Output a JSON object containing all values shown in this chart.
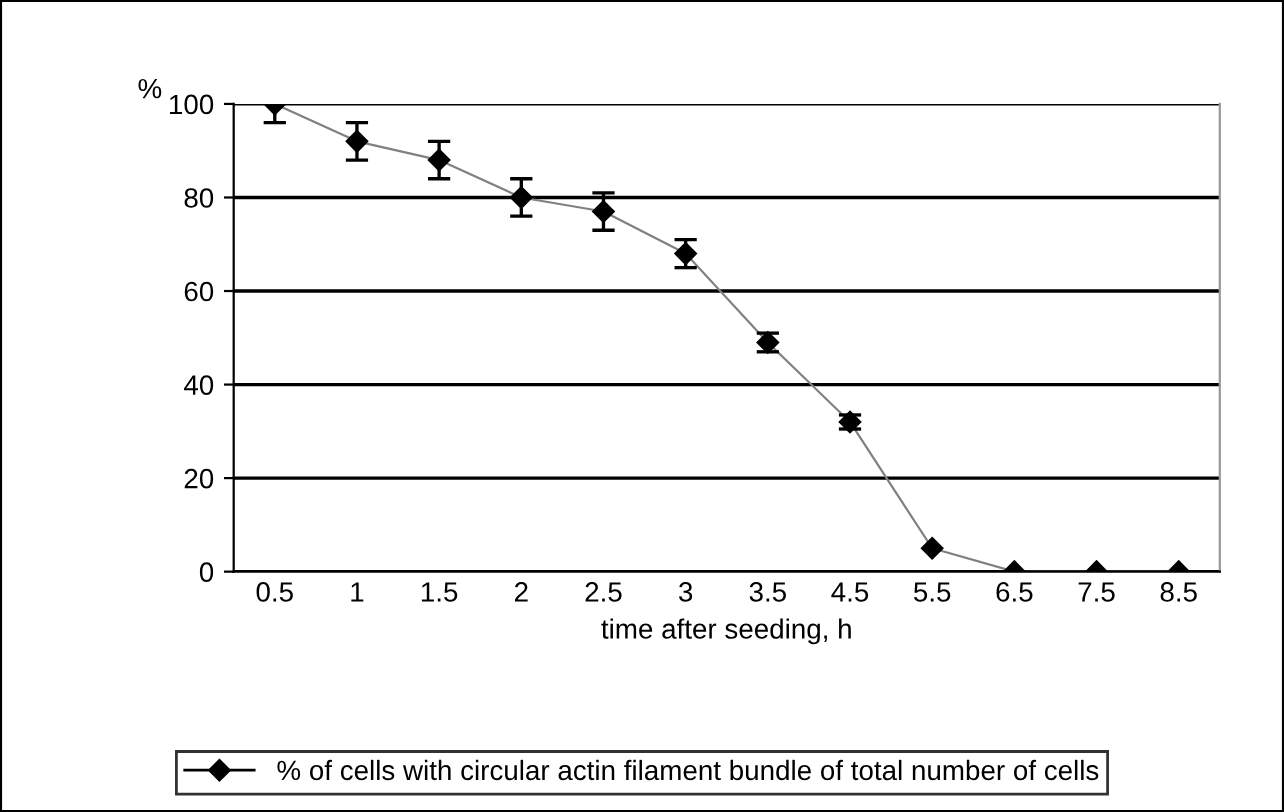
{
  "chart_data": {
    "type": "line",
    "xlabel": "time after seeding, h",
    "ylabel": "%",
    "categories": [
      "0.5",
      "1",
      "1.5",
      "2",
      "2.5",
      "3",
      "3.5",
      "4.5",
      "5.5",
      "6.5",
      "7.5",
      "8.5"
    ],
    "series": [
      {
        "name": "% of cells with circular actin filament bundle of total number of cells",
        "color": "#000000",
        "values": [
          100,
          92,
          88,
          80,
          77,
          68,
          49,
          32,
          5,
          0,
          0,
          0
        ],
        "errors": [
          4,
          4,
          4,
          4,
          4,
          3,
          2,
          1.5,
          null,
          null,
          null,
          null
        ]
      }
    ],
    "ylim": [
      0,
      100
    ],
    "yticks": [
      0,
      20,
      40,
      60,
      80,
      100
    ],
    "grid": "y",
    "legend": "bottom",
    "marker": "diamond",
    "line_style": "solid"
  }
}
